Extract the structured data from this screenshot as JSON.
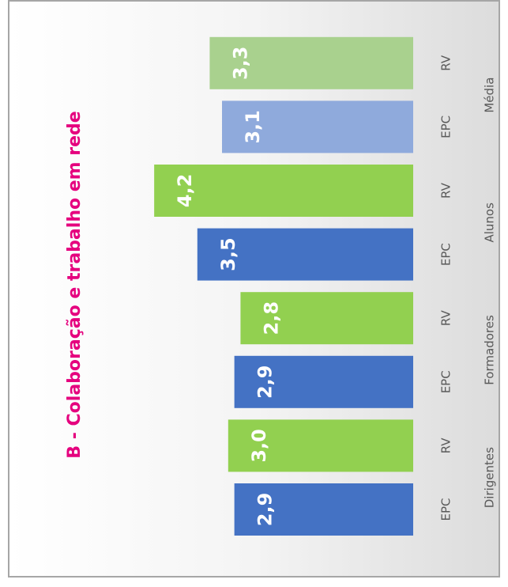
{
  "chart_data": {
    "type": "bar",
    "title": "B - Colaboração e trabalho em rede",
    "categories": [
      "EPC",
      "RV",
      "EPC",
      "RV",
      "EPC",
      "RV",
      "EPC",
      "RV"
    ],
    "groups": [
      "Dirigentes",
      "Formadores",
      "Alunos",
      "Média"
    ],
    "values": [
      2.9,
      3.0,
      2.9,
      2.8,
      3.5,
      4.2,
      3.1,
      3.3
    ],
    "value_labels": [
      "2,9",
      "3,0",
      "2,9",
      "2,8",
      "3,5",
      "4,2",
      "3,1",
      "3,3"
    ],
    "colors": [
      "#4472c4",
      "#92d050",
      "#4472c4",
      "#92d050",
      "#4472c4",
      "#92d050",
      "#8faadc",
      "#a9d18e"
    ],
    "ylim": [
      0,
      6.7
    ]
  }
}
